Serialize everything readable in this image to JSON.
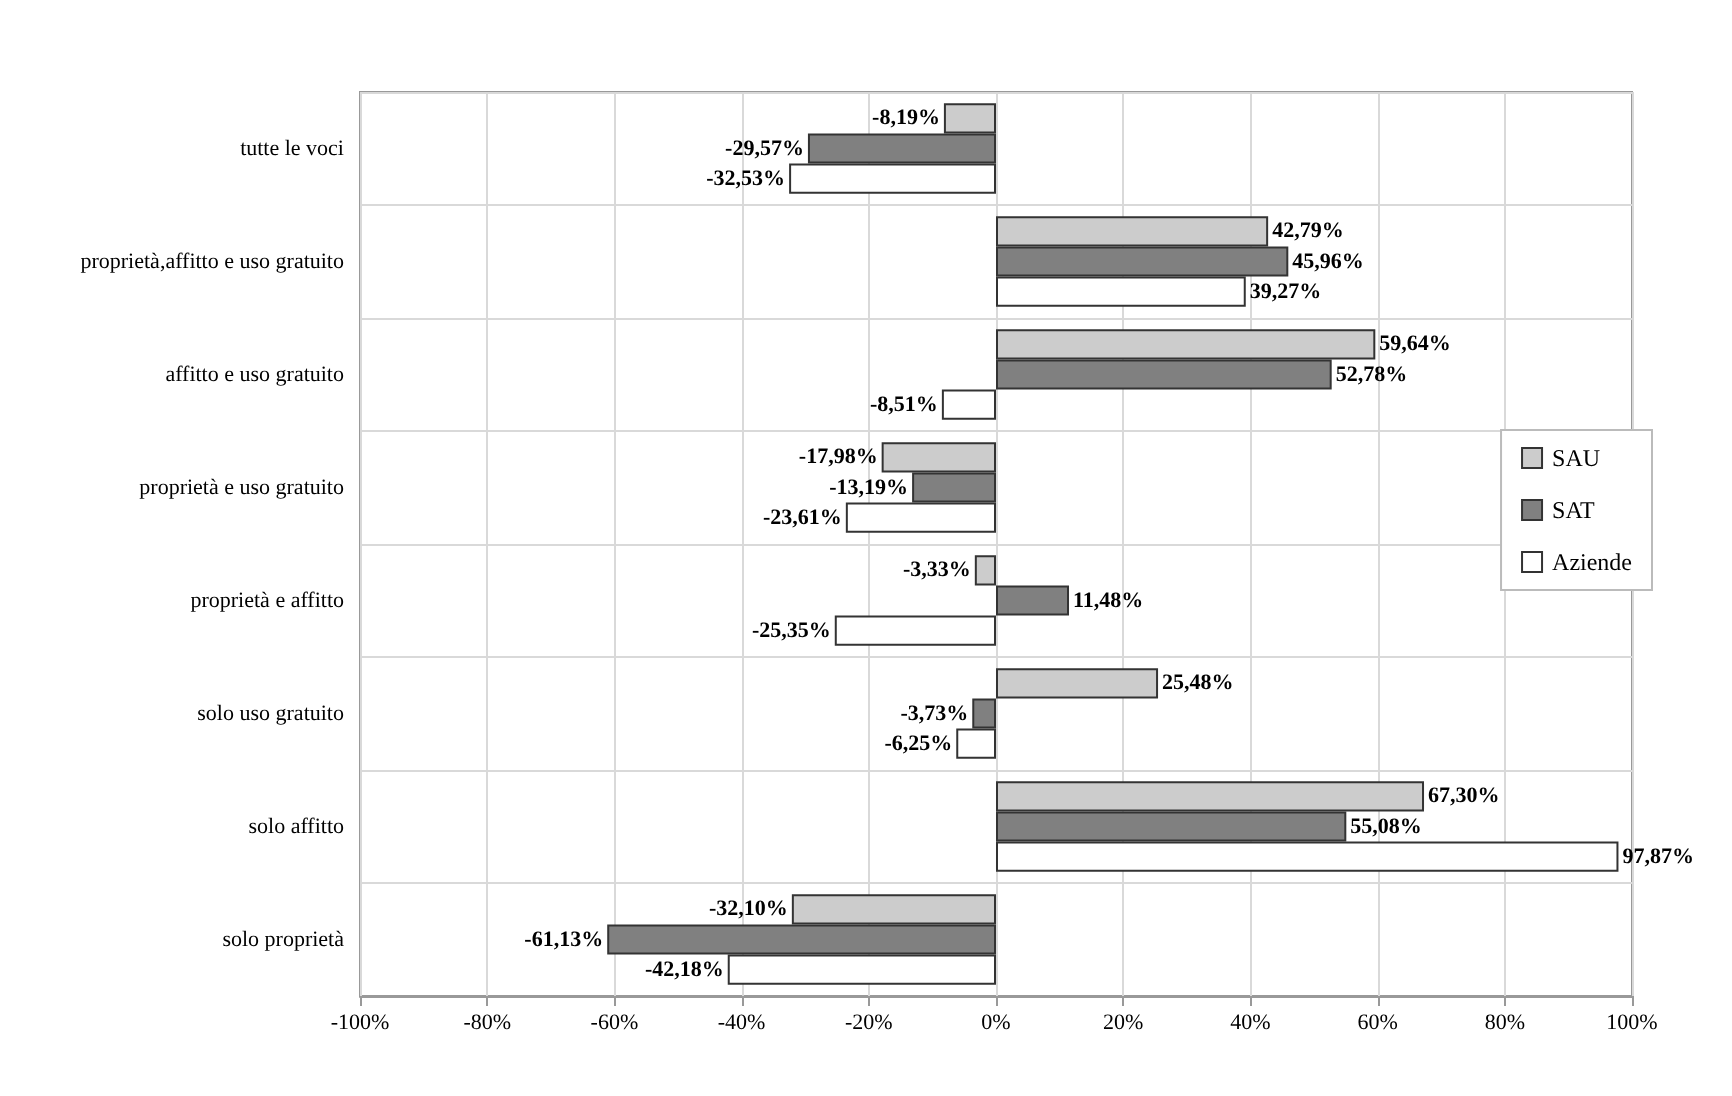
{
  "chart_data": {
    "type": "bar",
    "orientation": "horizontal",
    "categories": [
      "tutte le voci",
      "proprietà,affitto e uso gratuito",
      "affitto e uso gratuito",
      "proprietà e uso gratuito",
      "proprietà e affitto",
      "solo uso gratuito",
      "solo affitto",
      "solo proprietà"
    ],
    "series": [
      {
        "name": "SAU",
        "color": "#cccccc",
        "values": [
          -8.19,
          42.79,
          59.64,
          -17.98,
          -3.33,
          25.48,
          67.3,
          -32.1
        ],
        "value_labels": [
          "-8,19%",
          "42,79%",
          "59,64%",
          "-17,98%",
          "-3,33%",
          "25,48%",
          "67,30%",
          "-32,10%"
        ]
      },
      {
        "name": "SAT",
        "color": "#808080",
        "values": [
          -29.57,
          45.96,
          52.78,
          -13.19,
          11.48,
          -3.73,
          55.08,
          -61.13
        ],
        "value_labels": [
          "-29,57%",
          "45,96%",
          "52,78%",
          "-13,19%",
          "11,48%",
          "-3,73%",
          "55,08%",
          "-61,13%"
        ]
      },
      {
        "name": "Aziende",
        "color": "#ffffff",
        "values": [
          -32.53,
          39.27,
          -8.51,
          -23.61,
          -25.35,
          -6.25,
          97.87,
          -42.18
        ],
        "value_labels": [
          "-32,53%",
          "39,27%",
          "-8,51%",
          "-23,61%",
          "-25,35%",
          "-6,25%",
          "97,87%",
          "-42,18%"
        ]
      }
    ],
    "xlim": [
      -100,
      100
    ],
    "xticks": [
      {
        "value": -100,
        "label": "-100%"
      },
      {
        "value": -80,
        "label": "-80%"
      },
      {
        "value": -60,
        "label": "-60%"
      },
      {
        "value": -40,
        "label": "-40%"
      },
      {
        "value": -20,
        "label": "-20%"
      },
      {
        "value": 0,
        "label": "0%"
      },
      {
        "value": 20,
        "label": "20%"
      },
      {
        "value": 40,
        "label": "40%"
      },
      {
        "value": 60,
        "label": "60%"
      },
      {
        "value": 80,
        "label": "80%"
      },
      {
        "value": 100,
        "label": "100%"
      }
    ],
    "grid": true,
    "legend": "right"
  }
}
